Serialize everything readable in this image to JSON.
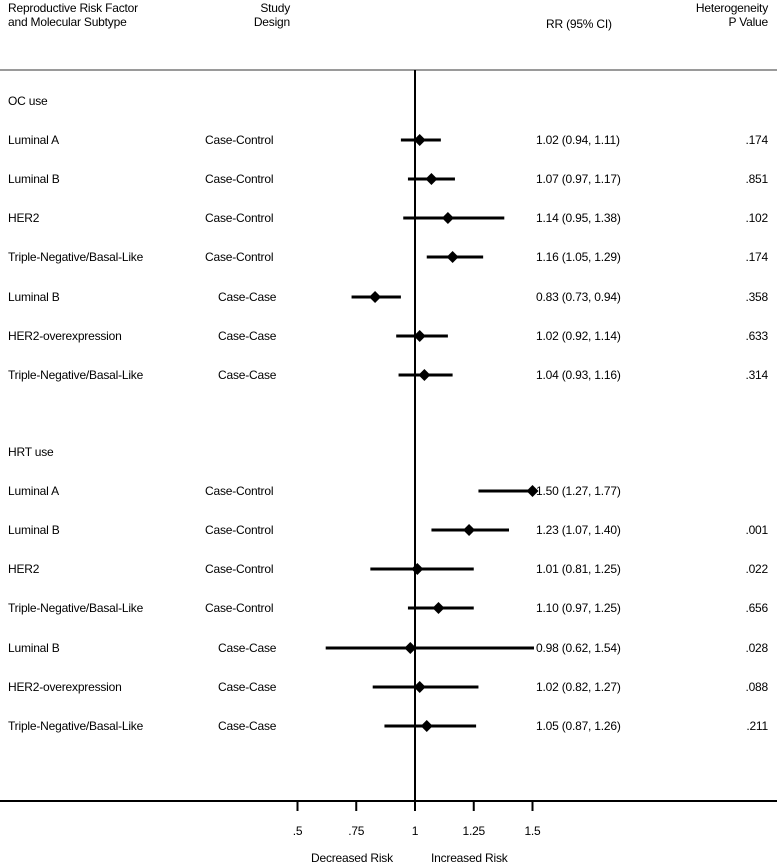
{
  "header": {
    "col_factor_line1": "Reproductive Risk Factor",
    "col_factor_line2": "and Molecular Subtype",
    "col_design_line1": "Study",
    "col_design_line2": "Design",
    "col_rr": "RR (95% CI)",
    "col_p_line1": "Heterogeneity",
    "col_p_line2": "P Value"
  },
  "groups": [
    {
      "label": "OC use",
      "rows": [
        {
          "subtype": "Luminal A",
          "design": "Case-Control",
          "rr": 1.02,
          "lo": 0.94,
          "hi": 1.11,
          "rr_text": "1.02 (0.94, 1.11)",
          "p": ".174"
        },
        {
          "subtype": "Luminal B",
          "design": "Case-Control",
          "rr": 1.07,
          "lo": 0.97,
          "hi": 1.17,
          "rr_text": "1.07 (0.97, 1.17)",
          "p": ".851"
        },
        {
          "subtype": "HER2",
          "design": "Case-Control",
          "rr": 1.14,
          "lo": 0.95,
          "hi": 1.38,
          "rr_text": "1.14 (0.95, 1.38)",
          "p": ".102"
        },
        {
          "subtype": "Triple-Negative/Basal-Like",
          "design": "Case-Control",
          "rr": 1.16,
          "lo": 1.05,
          "hi": 1.29,
          "rr_text": "1.16 (1.05, 1.29)",
          "p": ".174"
        },
        {
          "subtype": "Luminal B",
          "design": "Case-Case",
          "rr": 0.83,
          "lo": 0.73,
          "hi": 0.94,
          "rr_text": "0.83 (0.73, 0.94)",
          "p": ".358"
        },
        {
          "subtype": "HER2-overexpression",
          "design": "Case-Case",
          "rr": 1.02,
          "lo": 0.92,
          "hi": 1.14,
          "rr_text": "1.02 (0.92, 1.14)",
          "p": ".633"
        },
        {
          "subtype": "Triple-Negative/Basal-Like",
          "design": "Case-Case",
          "rr": 1.04,
          "lo": 0.93,
          "hi": 1.16,
          "rr_text": "1.04 (0.93, 1.16)",
          "p": ".314"
        }
      ]
    },
    {
      "label": "HRT use",
      "rows": [
        {
          "subtype": "Luminal A",
          "design": "Case-Control",
          "rr": 1.5,
          "lo": 1.27,
          "hi": 1.77,
          "rr_text": "1.50 (1.27, 1.77)",
          "p": ""
        },
        {
          "subtype": "Luminal B",
          "design": "Case-Control",
          "rr": 1.23,
          "lo": 1.07,
          "hi": 1.4,
          "rr_text": "1.23 (1.07, 1.40)",
          "p": ".001"
        },
        {
          "subtype": "HER2",
          "design": "Case-Control",
          "rr": 1.01,
          "lo": 0.81,
          "hi": 1.25,
          "rr_text": "1.01 (0.81, 1.25)",
          "p": ".022"
        },
        {
          "subtype": "Triple-Negative/Basal-Like",
          "design": "Case-Control",
          "rr": 1.1,
          "lo": 0.97,
          "hi": 1.25,
          "rr_text": "1.10 (0.97, 1.25)",
          "p": ".656"
        },
        {
          "subtype": "Luminal B",
          "design": "Case-Case",
          "rr": 0.98,
          "lo": 0.62,
          "hi": 1.54,
          "rr_text": "0.98 (0.62, 1.54)",
          "p": ".028"
        },
        {
          "subtype": "HER2-overexpression",
          "design": "Case-Case",
          "rr": 1.02,
          "lo": 0.82,
          "hi": 1.27,
          "rr_text": "1.02 (0.82, 1.27)",
          "p": ".088"
        },
        {
          "subtype": "Triple-Negative/Basal-Like",
          "design": "Case-Case",
          "rr": 1.05,
          "lo": 0.87,
          "hi": 1.26,
          "rr_text": "1.05 (0.87, 1.26)",
          "p": ".211"
        }
      ]
    }
  ],
  "axis": {
    "ticks": [
      {
        "value": 0.5,
        "label": ".5"
      },
      {
        "value": 0.75,
        "label": ".75"
      },
      {
        "value": 1,
        "label": "1"
      },
      {
        "value": 1.25,
        "label": "1.25"
      },
      {
        "value": 1.5,
        "label": "1.5"
      }
    ],
    "left_label": "Decreased Risk",
    "right_label": "Increased Risk"
  },
  "colors": {
    "ink": "#000000",
    "rule": "#9a9a9a"
  },
  "chart_data": {
    "type": "forest",
    "title": "",
    "xlabel": "Decreased Risk / Increased Risk",
    "ylabel": "",
    "reference_line": 1,
    "xlim": [
      0.5,
      1.5
    ],
    "x_ticks": [
      0.5,
      0.75,
      1,
      1.25,
      1.5
    ],
    "x_tick_labels": [
      ".5",
      ".75",
      "1",
      "1.25",
      "1.5"
    ],
    "columns": [
      "Reproductive Risk Factor and Molecular Subtype",
      "Study Design",
      "RR (95% CI)",
      "Heterogeneity P Value"
    ],
    "series": [
      {
        "name": "OC use",
        "categories": [
          "Luminal A (Case-Control)",
          "Luminal B (Case-Control)",
          "HER2 (Case-Control)",
          "Triple-Negative/Basal-Like (Case-Control)",
          "Luminal B (Case-Case)",
          "HER2-overexpression (Case-Case)",
          "Triple-Negative/Basal-Like (Case-Case)"
        ],
        "values": [
          1.02,
          1.07,
          1.14,
          1.16,
          0.83,
          1.02,
          1.04
        ],
        "ci_lower": [
          0.94,
          0.97,
          0.95,
          1.05,
          0.73,
          0.92,
          0.93
        ],
        "ci_upper": [
          1.11,
          1.17,
          1.38,
          1.29,
          0.94,
          1.14,
          1.16
        ],
        "heterogeneity_p": [
          ".174",
          ".851",
          ".102",
          ".174",
          ".358",
          ".633",
          ".314"
        ]
      },
      {
        "name": "HRT use",
        "categories": [
          "Luminal A (Case-Control)",
          "Luminal B (Case-Control)",
          "HER2 (Case-Control)",
          "Triple-Negative/Basal-Like (Case-Control)",
          "Luminal B (Case-Case)",
          "HER2-overexpression (Case-Case)",
          "Triple-Negative/Basal-Like (Case-Case)"
        ],
        "values": [
          1.5,
          1.23,
          1.01,
          1.1,
          0.98,
          1.02,
          1.05
        ],
        "ci_lower": [
          1.27,
          1.07,
          0.81,
          0.97,
          0.62,
          0.82,
          0.87
        ],
        "ci_upper": [
          1.77,
          1.4,
          1.25,
          1.25,
          1.54,
          1.27,
          1.26
        ],
        "heterogeneity_p": [
          "",
          ".001",
          ".022",
          ".656",
          ".028",
          ".088",
          ".211"
        ]
      }
    ],
    "grid": false,
    "legend": null
  }
}
